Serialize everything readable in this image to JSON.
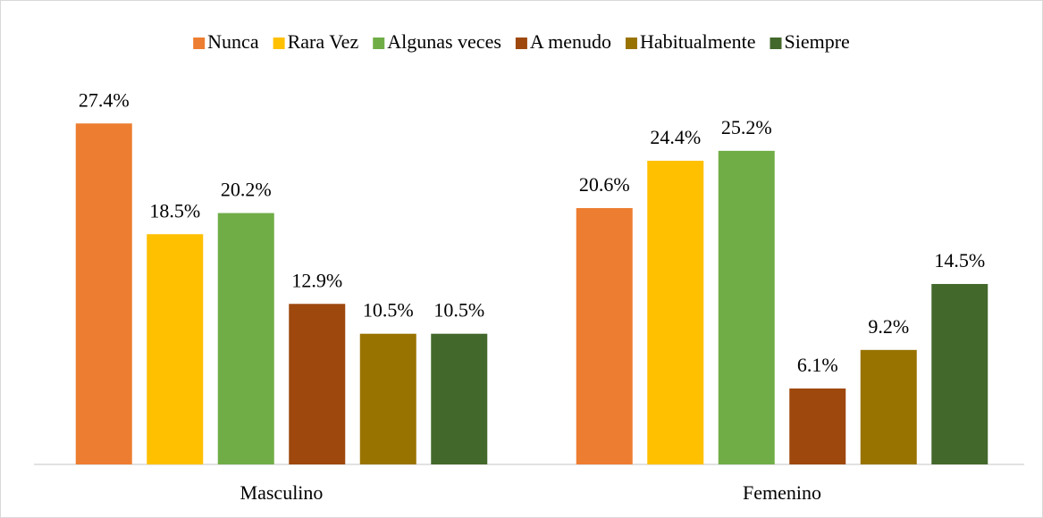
{
  "chart_data": {
    "type": "bar",
    "categories": [
      "Masculino",
      "Femenino"
    ],
    "series": [
      {
        "name": "Nunca",
        "color": "#ed7d31",
        "values": [
          27.4,
          20.6
        ],
        "value_labels": [
          "27.4%",
          "20.6%"
        ]
      },
      {
        "name": "Rara Vez",
        "color": "#ffc000",
        "values": [
          18.5,
          24.4
        ],
        "value_labels": [
          "18.5%",
          "24.4%"
        ]
      },
      {
        "name": "Algunas veces",
        "color": "#70ad47",
        "values": [
          20.2,
          25.2
        ],
        "value_labels": [
          "20.2%",
          "25.2%"
        ]
      },
      {
        "name": "A menudo",
        "color": "#9e480e",
        "values": [
          12.9,
          6.1
        ],
        "value_labels": [
          "12.9%",
          "6.1%"
        ]
      },
      {
        "name": "Habitualmente",
        "color": "#997300",
        "values": [
          10.5,
          9.2
        ],
        "value_labels": [
          "10.5%",
          "9.2%"
        ]
      },
      {
        "name": "Siempre",
        "color": "#43682b",
        "values": [
          10.5,
          14.5
        ],
        "value_labels": [
          "10.5%",
          "14.5%"
        ]
      }
    ],
    "ylim": [
      0,
      30
    ],
    "legend": "top"
  }
}
